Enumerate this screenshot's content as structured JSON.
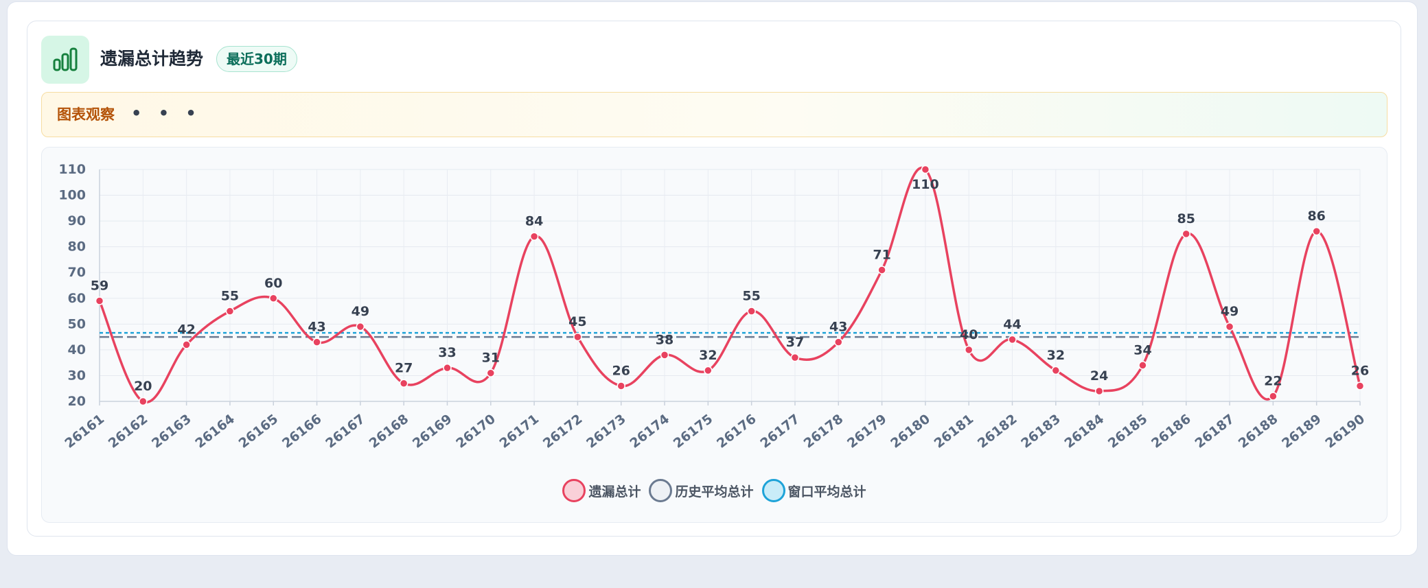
{
  "header": {
    "title": "遗漏总计趋势",
    "badge": "最近30期",
    "icon": "bar-chart-icon",
    "accent": "#16a34a"
  },
  "note": {
    "label": "图表观察",
    "dots": "• • •",
    "icon": "more-dots-icon"
  },
  "chart_data": {
    "type": "line",
    "title": "",
    "xlabel": "",
    "ylabel": "",
    "ylim": [
      20,
      110
    ],
    "yticks": [
      20,
      30,
      40,
      50,
      60,
      70,
      80,
      90,
      100,
      110
    ],
    "grid": true,
    "legend_position": "bottom-center",
    "x": [
      "26161",
      "26162",
      "26163",
      "26164",
      "26165",
      "26166",
      "26167",
      "26168",
      "26169",
      "26170",
      "26171",
      "26172",
      "26173",
      "26174",
      "26175",
      "26176",
      "26177",
      "26178",
      "26179",
      "26180",
      "26181",
      "26182",
      "26183",
      "26184",
      "26185",
      "26186",
      "26187",
      "26188",
      "26189",
      "26190"
    ],
    "series": [
      {
        "name": "遗漏总计",
        "color": "#e8425f",
        "fill": "#f9d0d8",
        "style": "smooth-line-with-markers",
        "values": [
          59,
          20,
          42,
          55,
          60,
          43,
          49,
          27,
          33,
          31,
          84,
          45,
          26,
          38,
          32,
          55,
          37,
          43,
          71,
          110,
          40,
          44,
          32,
          24,
          34,
          85,
          49,
          22,
          86,
          26
        ]
      },
      {
        "name": "历史平均总计",
        "color": "#6b7a90",
        "fill": "#eef1f5",
        "style": "dashed",
        "value": 45
      },
      {
        "name": "窗口平均总计",
        "color": "#1ea3d8",
        "fill": "#c9ecf8",
        "style": "dotted",
        "value": 46.6
      }
    ]
  }
}
